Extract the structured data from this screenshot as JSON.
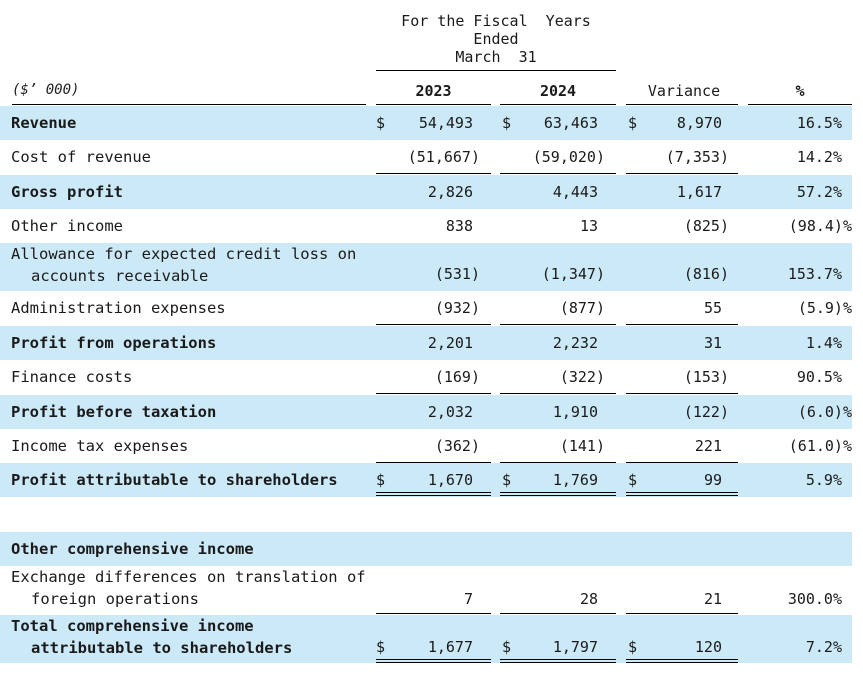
{
  "header": {
    "fiscal_line1": "For the Fiscal  Years",
    "fiscal_line2": "Ended",
    "fiscal_line3": "March  31",
    "unit": "($’ 000)",
    "col_2023": "2023",
    "col_2024": "2024",
    "col_variance": "Variance",
    "col_pct": "%"
  },
  "currency_symbol": "$",
  "rows": [
    {
      "label": "Revenue",
      "v2023": "54,493",
      "v2024": "63,463",
      "var": "8,970",
      "pct": "16.5%"
    },
    {
      "label": "Cost of revenue",
      "v2023": "(51,667)",
      "v2024": "(59,020)",
      "var": "(7,353)",
      "pct": "14.2%"
    },
    {
      "label": "Gross profit",
      "v2023": "2,826",
      "v2024": "4,443",
      "var": "1,617",
      "pct": "57.2%"
    },
    {
      "label": "Other income",
      "v2023": "838",
      "v2024": "13",
      "var": "(825)",
      "pct": "(98.4)%"
    },
    {
      "label1": "Allowance for expected credit loss on",
      "label2": "accounts receivable",
      "v2023": "(531)",
      "v2024": "(1,347)",
      "var": "(816)",
      "pct": "153.7%"
    },
    {
      "label": "Administration expenses",
      "v2023": "(932)",
      "v2024": "(877)",
      "var": "55",
      "pct": "(5.9)%"
    },
    {
      "label": "Profit from operations",
      "v2023": "2,201",
      "v2024": "2,232",
      "var": "31",
      "pct": "1.4%"
    },
    {
      "label": "Finance costs",
      "v2023": "(169)",
      "v2024": "(322)",
      "var": "(153)",
      "pct": "90.5%"
    },
    {
      "label": "Profit before taxation",
      "v2023": "2,032",
      "v2024": "1,910",
      "var": "(122)",
      "pct": "(6.0)%"
    },
    {
      "label": "Income tax expenses",
      "v2023": "(362)",
      "v2024": "(141)",
      "var": "221",
      "pct": "(61.0)%"
    },
    {
      "label": "Profit attributable to shareholders",
      "v2023": "1,670",
      "v2024": "1,769",
      "var": "99",
      "pct": "5.9%"
    },
    {
      "label": "Other comprehensive income"
    },
    {
      "label1": "Exchange differences on translation of",
      "label2": "foreign operations",
      "v2023": "7",
      "v2024": "28",
      "var": "21",
      "pct": "300.0%"
    },
    {
      "label1": "Total comprehensive income",
      "label2": "attributable to shareholders",
      "v2023": "1,677",
      "v2024": "1,797",
      "var": "120",
      "pct": "7.2%"
    }
  ]
}
